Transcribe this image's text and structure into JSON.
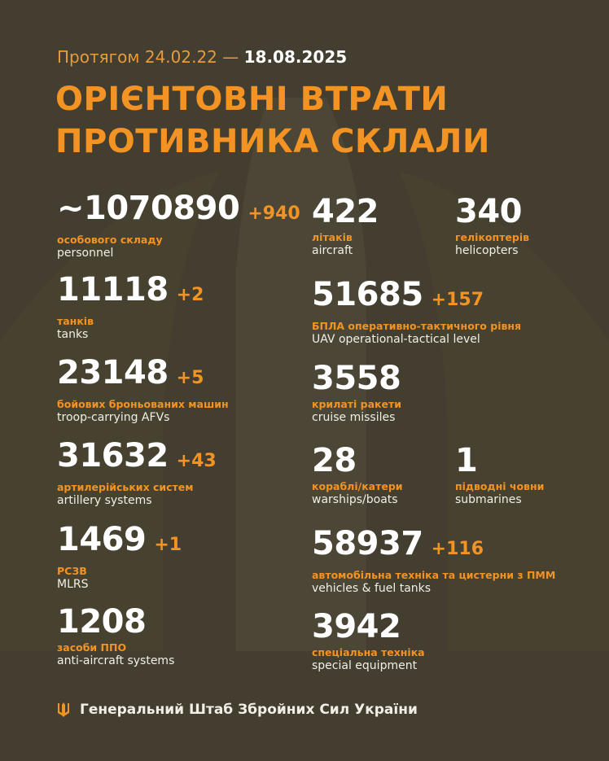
{
  "header": {
    "period_prefix": "Протягом 24.02.22 —",
    "period_date": "18.08.2025",
    "title_line1": "ОРІЄНТОВНІ ВТРАТИ",
    "title_line2": "ПРОТИВНИКА СКЛАЛИ"
  },
  "colors": {
    "background": "#433e2f",
    "accent": "#f39324",
    "text": "#ffffff"
  },
  "left": [
    {
      "value": "~1070890",
      "delta": "+940",
      "ua": "особового складу",
      "en": "personnel"
    },
    {
      "value": "11118",
      "delta": "+2",
      "ua": "танків",
      "en": "tanks"
    },
    {
      "value": "23148",
      "delta": "+5",
      "ua": "бойових броньованих машин",
      "en": "troop-carrying AFVs"
    },
    {
      "value": "31632",
      "delta": "+43",
      "ua": "артилерійських систем",
      "en": "artillery systems"
    },
    {
      "value": "1469",
      "delta": "+1",
      "ua": "РСЗВ",
      "en": "MLRS"
    },
    {
      "value": "1208",
      "delta": "",
      "ua": "засоби ППО",
      "en": "anti-aircraft systems"
    }
  ],
  "right": [
    {
      "value": "422",
      "delta": "",
      "ua": "літаків",
      "en": "aircraft"
    },
    {
      "value": "340",
      "delta": "",
      "ua": "гелікоптерів",
      "en": "helicopters"
    },
    {
      "value": "51685",
      "delta": "+157",
      "ua": "БПЛА оперативно-тактичного рівня",
      "en": "UAV operational-tactical level"
    },
    {
      "value": "3558",
      "delta": "",
      "ua": "крилаті ракети",
      "en": "cruise missiles"
    },
    {
      "value": "28",
      "delta": "",
      "ua": "кораблі/катери",
      "en": "warships/boats"
    },
    {
      "value": "1",
      "delta": "",
      "ua": "підводні човни",
      "en": "submarines"
    },
    {
      "value": "58937",
      "delta": "+116",
      "ua": "автомобільна техніка та цистерни з ПММ",
      "en": "vehicles & fuel tanks"
    },
    {
      "value": "3942",
      "delta": "",
      "ua": "спеціальна техніка",
      "en": "special equipment"
    }
  ],
  "footer": {
    "icon": "trident-icon",
    "text": "Генеральний Штаб Збройних Сил України"
  }
}
